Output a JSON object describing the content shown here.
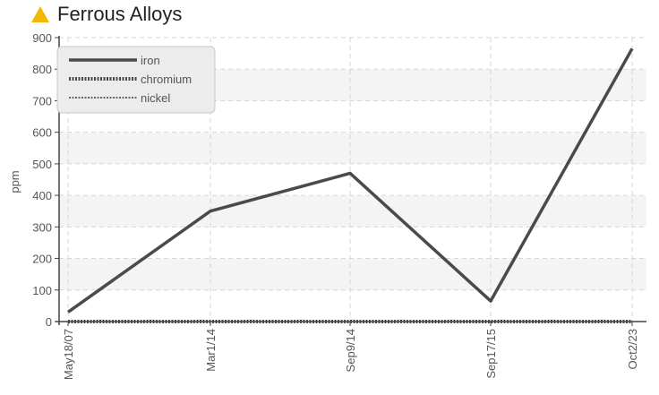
{
  "header": {
    "title": "Ferrous Alloys",
    "icon": "warning-triangle-icon",
    "icon_color": "#f5b800"
  },
  "chart_data": {
    "type": "line",
    "title": "Ferrous Alloys",
    "xlabel": "",
    "ylabel": "ppm",
    "categories": [
      "May18/07",
      "Mar1/14",
      "Sep9/14",
      "Sep17/15",
      "Oct2/23"
    ],
    "ylim": [
      0,
      900
    ],
    "yticks": [
      0,
      100,
      200,
      300,
      400,
      500,
      600,
      700,
      800,
      900
    ],
    "grid": true,
    "legend_position": "top-left",
    "series": [
      {
        "name": "iron",
        "values": [
          30,
          350,
          470,
          65,
          865
        ],
        "color": "#4a4a4a",
        "style": "solid"
      },
      {
        "name": "chromium",
        "values": [
          0,
          0,
          0,
          0,
          0
        ],
        "color": "#4a4a4a",
        "style": "dotted-thick"
      },
      {
        "name": "nickel",
        "values": [
          0,
          0,
          0,
          0,
          0
        ],
        "color": "#666666",
        "style": "dotted-thin"
      }
    ]
  }
}
